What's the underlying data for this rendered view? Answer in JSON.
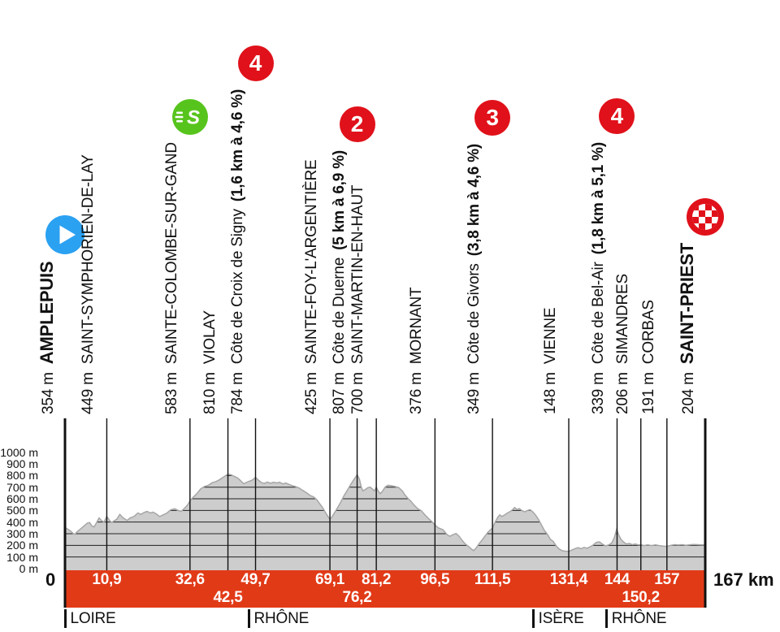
{
  "colors": {
    "band_red": "#e13a17",
    "badge_red": "#e0111a",
    "sprint_green": "#57c41d",
    "start_blue": "#2ba1f1",
    "profile_gray": "#cdcdcd",
    "profile_edge": "#a6a6a6",
    "line_black": "#111111"
  },
  "icons": {
    "sprint_letter": "S"
  },
  "chart_data": {
    "type": "area",
    "x_unit": "km",
    "y_unit": "m",
    "xlim": [
      0,
      167
    ],
    "ylim": [
      0,
      1000
    ],
    "x_axis_start_label": "0",
    "x_axis_end_label": "167 km",
    "y_ticks": [
      {
        "v": 1000,
        "label": "1000 m"
      },
      {
        "v": 900,
        "label": "900 m"
      },
      {
        "v": 800,
        "label": "800 m"
      },
      {
        "v": 700,
        "label": "700 m"
      },
      {
        "v": 600,
        "label": "600 m"
      },
      {
        "v": 500,
        "label": "500 m"
      },
      {
        "v": 400,
        "label": "400 m"
      },
      {
        "v": 300,
        "label": "300 m"
      },
      {
        "v": 200,
        "label": "200 m"
      },
      {
        "v": 100,
        "label": "100 m"
      },
      {
        "v": 0,
        "label": "0 m"
      }
    ],
    "waypoints": [
      {
        "km": 0,
        "elevation": "354 m",
        "name": "AMPLEPUIS",
        "emphasis": "bold",
        "icon": "start",
        "km_label": "0",
        "km_label_pos": "outside-left"
      },
      {
        "km": 10.9,
        "elevation": "449 m",
        "name": "SAINT-SYMPHORIEN-DE-LAY",
        "km_label": "10,9",
        "km_row": 1
      },
      {
        "km": 32.6,
        "elevation": "583 m",
        "name": "SAINTE-COLOMBE-SUR-GAND",
        "icon": "sprint",
        "km_label": "32,6",
        "km_row": 1
      },
      {
        "km": 42.5,
        "elevation": "810 m",
        "name": "VIOLAY",
        "km_label": "42,5",
        "km_row": 2
      },
      {
        "km": 49.7,
        "elevation": "784 m",
        "name": "Côte de Croix de Signy",
        "detail": "(1,6 km à 4,6 %)",
        "badge": "4",
        "km_label": "49,7",
        "km_row": 1
      },
      {
        "km": 69.1,
        "elevation": "425 m",
        "name": "SAINTE-FOY-L'ARGENTIÈRE",
        "km_label": "69,1",
        "km_row": 1
      },
      {
        "km": 76.2,
        "elevation": "807 m",
        "name": "Côte de Duerne",
        "detail": "(5 km à 6,9 %)",
        "badge": "2",
        "km_label": "76,2",
        "km_row": 2
      },
      {
        "km": 81.2,
        "elevation": "700 m",
        "name": "SAINT-MARTIN-EN-HAUT",
        "km_label": "81,2",
        "km_row": 1
      },
      {
        "km": 96.5,
        "elevation": "376 m",
        "name": "MORNANT",
        "km_label": "96,5",
        "km_row": 1
      },
      {
        "km": 111.5,
        "elevation": "349 m",
        "name": "Côte de Givors",
        "detail": "(3,8 km à 4,6 %)",
        "badge": "3",
        "km_label": "111,5",
        "km_row": 1
      },
      {
        "km": 131.4,
        "elevation": "148 m",
        "name": "VIENNE",
        "km_label": "131,4",
        "km_row": 1
      },
      {
        "km": 144,
        "elevation": "339 m",
        "name": "Côte de Bel-Air",
        "detail": "(1,8 km à 5,1 %)",
        "badge": "4",
        "km_label": "144",
        "km_row": 1
      },
      {
        "km": 150.2,
        "elevation": "206 m",
        "name": "SIMANDRES",
        "km_label": "150,2",
        "km_row": 2
      },
      {
        "km": 157,
        "elevation": "191 m",
        "name": "CORBAS",
        "km_label": "157",
        "km_row": 1
      },
      {
        "km": 167,
        "elevation": "204 m",
        "name": "SAINT-PRIEST",
        "emphasis": "bold",
        "icon": "finish",
        "km_label": "167 km",
        "km_label_pos": "outside-right"
      }
    ],
    "departments": [
      {
        "name": "LOIRE",
        "km": 0
      },
      {
        "name": "RHÔNE",
        "km": 47.9
      },
      {
        "name": "ISÈRE",
        "km": 122.1
      },
      {
        "name": "RHÔNE",
        "km": 141.2
      }
    ],
    "profile": [
      [
        0,
        354
      ],
      [
        0.8,
        338
      ],
      [
        1.5,
        322
      ],
      [
        2.2,
        300
      ],
      [
        2.6,
        296
      ],
      [
        3.2,
        318
      ],
      [
        4,
        340
      ],
      [
        5,
        368
      ],
      [
        5.8,
        390
      ],
      [
        6.4,
        396
      ],
      [
        7,
        368
      ],
      [
        7.6,
        358
      ],
      [
        8.3,
        400
      ],
      [
        8.9,
        436
      ],
      [
        9.6,
        410
      ],
      [
        10.2,
        400
      ],
      [
        10.9,
        449
      ],
      [
        11.5,
        420
      ],
      [
        12.1,
        396
      ],
      [
        12.8,
        410
      ],
      [
        13.5,
        424
      ],
      [
        14.3,
        466
      ],
      [
        15,
        440
      ],
      [
        16.2,
        414
      ],
      [
        17,
        436
      ],
      [
        18,
        448
      ],
      [
        19,
        478
      ],
      [
        19.8,
        466
      ],
      [
        20.6,
        482
      ],
      [
        21.4,
        492
      ],
      [
        22.2,
        478
      ],
      [
        23,
        486
      ],
      [
        23.8,
        470
      ],
      [
        24.7,
        448
      ],
      [
        25.6,
        462
      ],
      [
        26.6,
        478
      ],
      [
        27.6,
        506
      ],
      [
        28.6,
        514
      ],
      [
        29.5,
        500
      ],
      [
        30.3,
        492
      ],
      [
        31.2,
        520
      ],
      [
        32,
        548
      ],
      [
        32.6,
        583
      ],
      [
        33.4,
        612
      ],
      [
        34.4,
        644
      ],
      [
        35.4,
        685
      ],
      [
        36.4,
        706
      ],
      [
        37.4,
        716
      ],
      [
        38.4,
        738
      ],
      [
        39.4,
        748
      ],
      [
        40.2,
        762
      ],
      [
        41,
        780
      ],
      [
        41.8,
        796
      ],
      [
        42.5,
        810
      ],
      [
        43.3,
        806
      ],
      [
        44,
        795
      ],
      [
        45,
        780
      ],
      [
        45.8,
        756
      ],
      [
        46.6,
        730
      ],
      [
        47.4,
        742
      ],
      [
        48.2,
        752
      ],
      [
        48.9,
        762
      ],
      [
        49.7,
        784
      ],
      [
        50.4,
        762
      ],
      [
        51.2,
        740
      ],
      [
        52,
        732
      ],
      [
        52.8,
        744
      ],
      [
        53.6,
        734
      ],
      [
        54.4,
        742
      ],
      [
        55.2,
        736
      ],
      [
        56,
        742
      ],
      [
        56.8,
        728
      ],
      [
        57.6,
        736
      ],
      [
        58.4,
        724
      ],
      [
        59.2,
        714
      ],
      [
        60,
        706
      ],
      [
        61,
        694
      ],
      [
        62,
        672
      ],
      [
        63,
        652
      ],
      [
        64,
        628
      ],
      [
        64.8,
        616
      ],
      [
        65.6,
        596
      ],
      [
        66.4,
        560
      ],
      [
        67.2,
        524
      ],
      [
        68,
        478
      ],
      [
        68.6,
        448
      ],
      [
        69.1,
        425
      ],
      [
        69.7,
        448
      ],
      [
        70.4,
        486
      ],
      [
        71.2,
        530
      ],
      [
        72,
        576
      ],
      [
        72.8,
        628
      ],
      [
        73.6,
        672
      ],
      [
        74.4,
        716
      ],
      [
        75.2,
        758
      ],
      [
        76.2,
        807
      ],
      [
        76.8,
        768
      ],
      [
        77.3,
        700
      ],
      [
        77.7,
        668
      ],
      [
        78.3,
        680
      ],
      [
        79,
        696
      ],
      [
        79.6,
        700
      ],
      [
        80.2,
        684
      ],
      [
        80.7,
        668
      ],
      [
        81.2,
        700
      ],
      [
        81.7,
        666
      ],
      [
        82.2,
        644
      ],
      [
        82.8,
        664
      ],
      [
        83.5,
        700
      ],
      [
        84.2,
        716
      ],
      [
        85,
        714
      ],
      [
        86,
        706
      ],
      [
        87,
        698
      ],
      [
        88,
        668
      ],
      [
        88.6,
        636
      ],
      [
        89.4,
        606
      ],
      [
        90.2,
        580
      ],
      [
        91,
        548
      ],
      [
        92,
        516
      ],
      [
        93,
        496
      ],
      [
        94,
        458
      ],
      [
        95,
        424
      ],
      [
        95.8,
        400
      ],
      [
        96.5,
        376
      ],
      [
        97.3,
        352
      ],
      [
        98,
        342
      ],
      [
        98.6,
        334
      ],
      [
        99.2,
        310
      ],
      [
        99.8,
        288
      ],
      [
        100.4,
        278
      ],
      [
        101.2,
        292
      ],
      [
        102,
        302
      ],
      [
        102.8,
        278
      ],
      [
        103.6,
        242
      ],
      [
        104.4,
        212
      ],
      [
        105.2,
        192
      ],
      [
        106,
        168
      ],
      [
        106.6,
        155
      ],
      [
        107.3,
        180
      ],
      [
        108,
        214
      ],
      [
        108.8,
        246
      ],
      [
        109.6,
        282
      ],
      [
        110.4,
        316
      ],
      [
        111.5,
        349
      ],
      [
        112.2,
        400
      ],
      [
        112.9,
        442
      ],
      [
        113.4,
        462
      ],
      [
        114,
        448
      ],
      [
        114.7,
        462
      ],
      [
        115.4,
        478
      ],
      [
        116.1,
        490
      ],
      [
        116.8,
        508
      ],
      [
        117.3,
        525
      ],
      [
        117.9,
        508
      ],
      [
        118.5,
        516
      ],
      [
        119.2,
        498
      ],
      [
        119.9,
        488
      ],
      [
        120.6,
        500
      ],
      [
        121.3,
        506
      ],
      [
        122,
        488
      ],
      [
        122.7,
        462
      ],
      [
        123.4,
        428
      ],
      [
        124.2,
        382
      ],
      [
        125,
        330
      ],
      [
        125.8,
        296
      ],
      [
        126.6,
        252
      ],
      [
        127.4,
        232
      ],
      [
        128.2,
        192
      ],
      [
        129,
        166
      ],
      [
        129.8,
        153
      ],
      [
        130.6,
        150
      ],
      [
        131.4,
        148
      ],
      [
        132.2,
        160
      ],
      [
        133,
        172
      ],
      [
        133.8,
        180
      ],
      [
        134.6,
        172
      ],
      [
        135.4,
        182
      ],
      [
        136.2,
        176
      ],
      [
        137,
        188
      ],
      [
        137.8,
        204
      ],
      [
        138.6,
        226
      ],
      [
        139.4,
        230
      ],
      [
        140.2,
        210
      ],
      [
        141,
        196
      ],
      [
        141.8,
        204
      ],
      [
        142.6,
        220
      ],
      [
        143.3,
        268
      ],
      [
        143.9,
        339
      ],
      [
        144.4,
        290
      ],
      [
        145,
        252
      ],
      [
        145.7,
        228
      ],
      [
        146.4,
        212
      ],
      [
        147.2,
        216
      ],
      [
        148,
        206
      ],
      [
        148.8,
        212
      ],
      [
        149.5,
        204
      ],
      [
        150.2,
        206
      ],
      [
        151,
        198
      ],
      [
        152,
        204
      ],
      [
        153,
        198
      ],
      [
        154,
        204
      ],
      [
        155,
        198
      ],
      [
        156,
        194
      ],
      [
        157,
        191
      ],
      [
        158,
        200
      ],
      [
        159,
        206
      ],
      [
        160,
        203
      ],
      [
        161,
        206
      ],
      [
        162,
        201
      ],
      [
        163,
        205
      ],
      [
        164,
        208
      ],
      [
        165,
        206
      ],
      [
        166,
        204
      ],
      [
        167,
        204
      ]
    ]
  }
}
